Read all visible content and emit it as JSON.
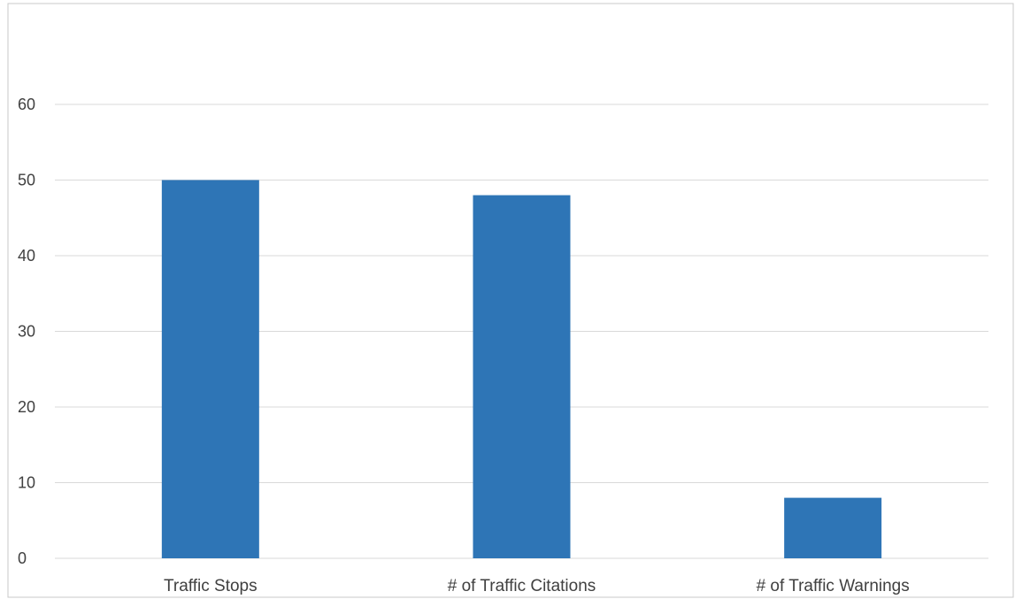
{
  "chart_data": {
    "type": "bar",
    "categories": [
      "Traffic Stops",
      "# of Traffic Citations",
      "# of Traffic Warnings"
    ],
    "values": [
      50,
      48,
      8
    ],
    "ylim": [
      0,
      60
    ],
    "yticks": [
      0,
      10,
      20,
      30,
      40,
      50,
      60
    ],
    "grid": true,
    "legend": "none",
    "colors": {
      "bar": "#2e75b6",
      "grid": "#d9d9d9",
      "text": "#404040",
      "frame": "#c8c8c8"
    }
  }
}
